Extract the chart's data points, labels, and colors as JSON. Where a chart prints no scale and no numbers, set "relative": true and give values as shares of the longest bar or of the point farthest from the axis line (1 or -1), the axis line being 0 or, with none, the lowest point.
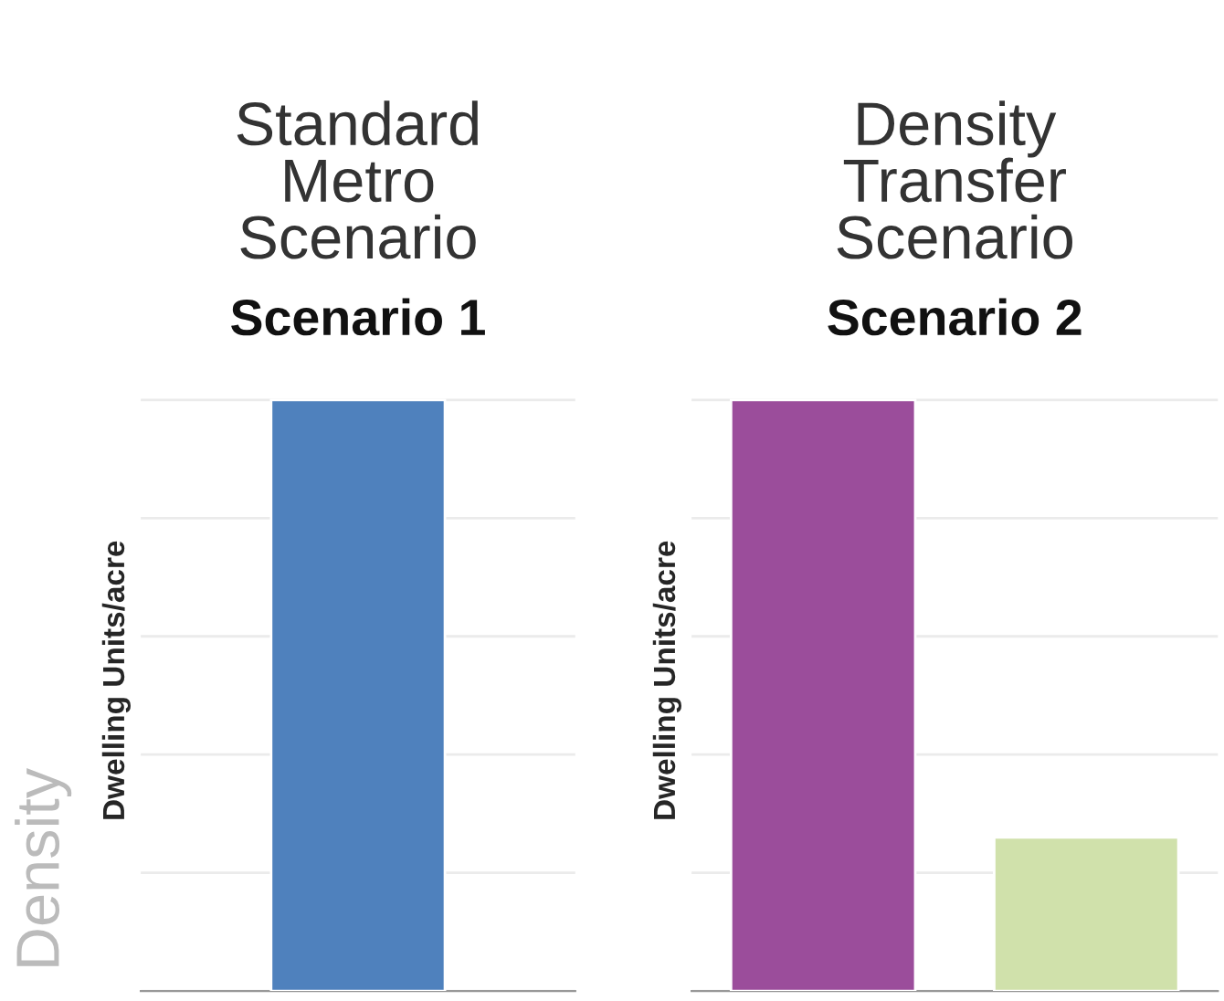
{
  "chart_data": [
    {
      "type": "bar",
      "title": "Standard Metro Scenario",
      "subtitle": "Scenario 1",
      "ylabel": "Dwelling Units/acre",
      "relative": true,
      "categories": [
        null
      ],
      "colors": [
        "#4f81bd"
      ],
      "values": [
        1
      ],
      "grid": "y",
      "annotations": [
        "Density"
      ]
    },
    {
      "type": "bar",
      "title": "Density Transfer Scenario",
      "subtitle": "Scenario 2",
      "ylabel": "Dwelling Units/acre",
      "relative": true,
      "categories": [
        null,
        null
      ],
      "colors": [
        "#9b4d9b",
        "#d0e1ab"
      ],
      "values": [
        1,
        0.26
      ],
      "grid": "y"
    }
  ]
}
